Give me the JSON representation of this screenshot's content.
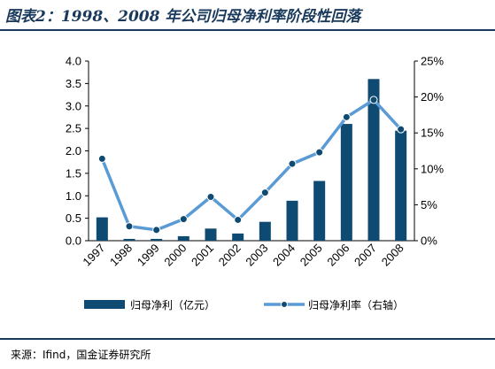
{
  "title": "图表2：1998、2008 年公司归母净利率阶段性回落",
  "source": "来源：Ifind，国金证券研究所",
  "colors": {
    "bar": "#0f4a72",
    "line": "#5b9bd5",
    "marker": "#0f4a72",
    "rule": "#1a3a5c"
  },
  "chart_data": {
    "type": "bar",
    "categories": [
      "1997",
      "1998",
      "1999",
      "2000",
      "2001",
      "2002",
      "2003",
      "2004",
      "2005",
      "2006",
      "2007",
      "2008"
    ],
    "series": [
      {
        "name": "归母净利（亿元）",
        "type": "bar",
        "axis": "left",
        "values": [
          0.52,
          0.04,
          0.04,
          0.1,
          0.27,
          0.16,
          0.42,
          0.89,
          1.33,
          2.6,
          3.6,
          2.45
        ]
      },
      {
        "name": "归母净利率（右轴）",
        "type": "line",
        "axis": "right",
        "values": [
          11.4,
          2.0,
          1.5,
          3.0,
          6.1,
          2.9,
          6.7,
          10.7,
          12.3,
          17.2,
          19.6,
          15.5
        ]
      }
    ],
    "y_left": {
      "min": 0,
      "max": 4.0,
      "ticks": [
        "0.0",
        "0.5",
        "1.0",
        "1.5",
        "2.0",
        "2.5",
        "3.0",
        "3.5",
        "4.0"
      ]
    },
    "y_right": {
      "min": 0,
      "max": 25,
      "ticks": [
        "0%",
        "5%",
        "10%",
        "15%",
        "20%",
        "25%"
      ]
    },
    "grid": false,
    "legend_position": "bottom"
  }
}
